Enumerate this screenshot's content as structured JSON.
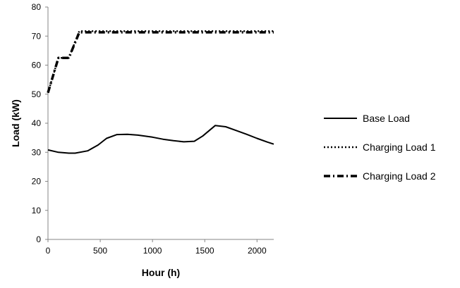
{
  "chart_data": {
    "type": "line",
    "xlabel": "Hour (h)",
    "ylabel": "Load (kW)",
    "xlim": [
      0,
      2160
    ],
    "ylim": [
      0,
      80
    ],
    "x_ticks": [
      0,
      500,
      1000,
      1500,
      2000
    ],
    "y_ticks": [
      0,
      10,
      20,
      30,
      40,
      50,
      60,
      70,
      80
    ],
    "grid": false,
    "legend_position": "right",
    "series": [
      {
        "name": "Base Load",
        "style": "solid",
        "color": "#000000",
        "x": [
          0,
          100,
          200,
          260,
          380,
          480,
          560,
          660,
          760,
          860,
          1000,
          1100,
          1200,
          1300,
          1400,
          1480,
          1600,
          1700,
          1800,
          1900,
          2000,
          2100,
          2160
        ],
        "y": [
          30.8,
          30.0,
          29.7,
          29.7,
          30.5,
          32.5,
          34.8,
          36.1,
          36.2,
          35.9,
          35.2,
          34.5,
          34.0,
          33.6,
          33.8,
          35.6,
          39.2,
          38.8,
          37.5,
          36.2,
          34.8,
          33.5,
          32.8
        ]
      },
      {
        "name": "Charging Load 1",
        "style": "dotted",
        "color": "#000000",
        "x": [
          0,
          100,
          200,
          300,
          2160
        ],
        "y": [
          50.5,
          62.5,
          62.5,
          71.7,
          71.7
        ]
      },
      {
        "name": "Charging Load 2",
        "style": "dashdot",
        "color": "#000000",
        "x": [
          0,
          100,
          200,
          300,
          2160
        ],
        "y": [
          50.5,
          62.5,
          62.5,
          71.3,
          71.3
        ]
      }
    ]
  }
}
